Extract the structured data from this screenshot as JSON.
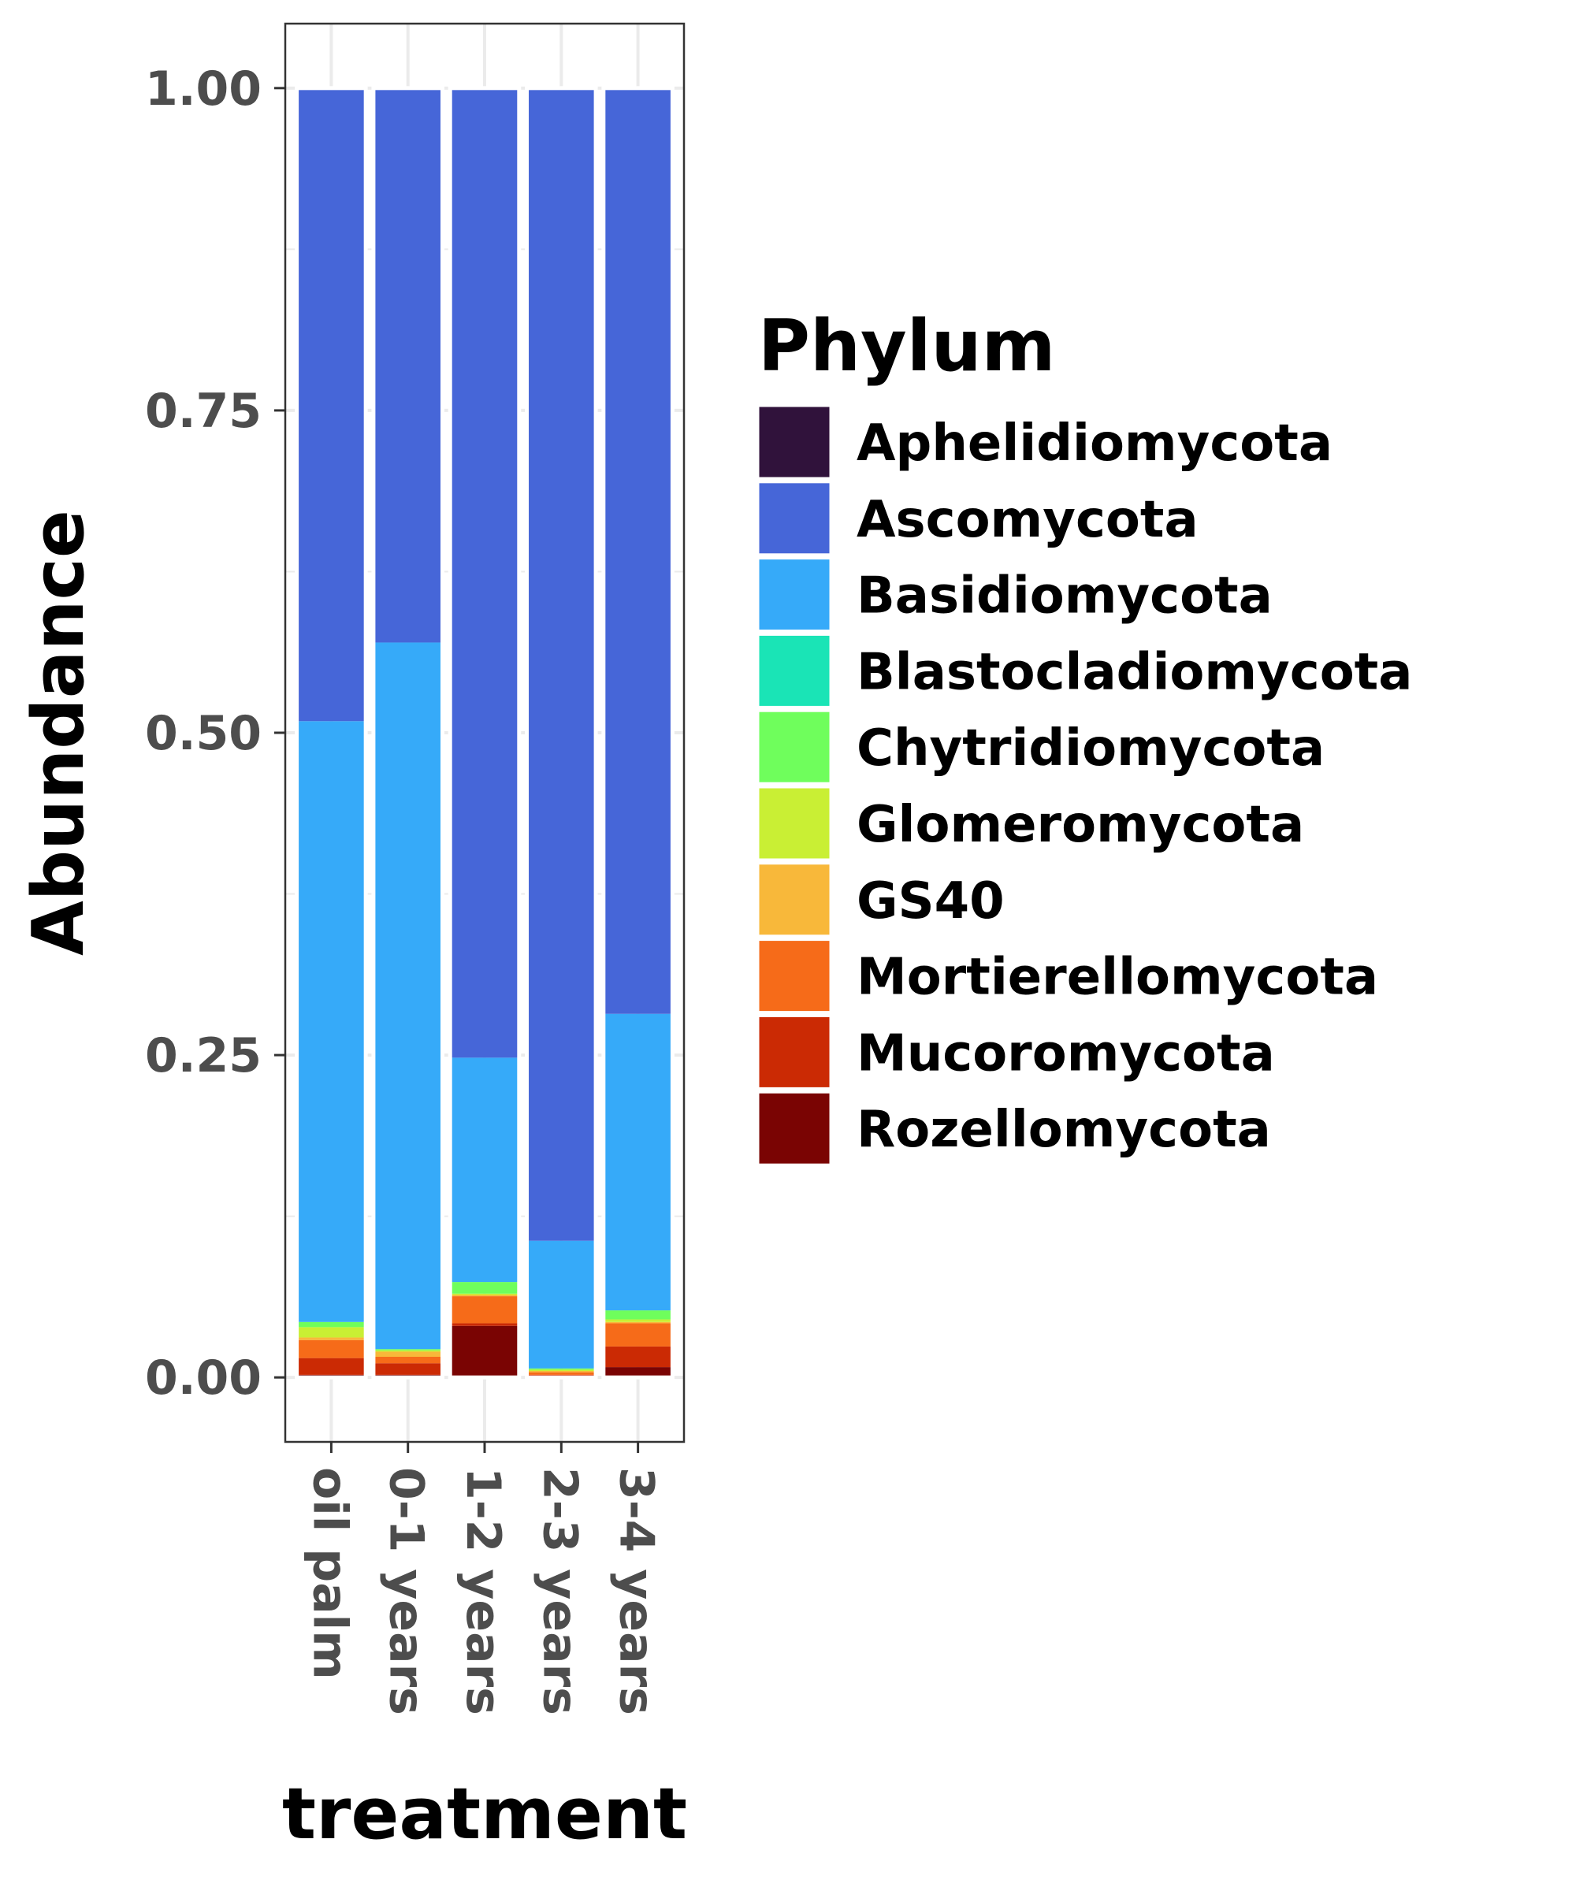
{
  "chart_data": {
    "type": "bar",
    "stacked": true,
    "xlabel": "treatment",
    "ylabel": "Abundance",
    "ylim": [
      -0.05,
      1.05
    ],
    "yticks": [
      "0.00",
      "0.25",
      "0.50",
      "0.75",
      "1.00"
    ],
    "grid": true,
    "legend_position": "right",
    "legend_title": "Phylum",
    "categories": [
      "oil palm",
      "0-1 years",
      "1-2 years",
      "2-3 years",
      "3-4 years"
    ],
    "series": [
      {
        "name": "Rozellomycota",
        "color": "#7a0403",
        "values": [
          0.002,
          0.002,
          0.04,
          0.001,
          0.008
        ]
      },
      {
        "name": "Mucoromycota",
        "color": "#cb2a04",
        "values": [
          0.013,
          0.009,
          0.002,
          0.001,
          0.016
        ]
      },
      {
        "name": "Mortierellomycota",
        "color": "#f66b19",
        "values": [
          0.014,
          0.005,
          0.021,
          0.002,
          0.018
        ]
      },
      {
        "name": "GS40",
        "color": "#f8b83a",
        "values": [
          0.002,
          0.004,
          0.001,
          0.001,
          0.001
        ]
      },
      {
        "name": "Glomeromycota",
        "color": "#c9ef34",
        "values": [
          0.008,
          0.001,
          0.001,
          0.001,
          0.002
        ]
      },
      {
        "name": "Chytridiomycota",
        "color": "#6ffe5c",
        "values": [
          0.004,
          0.001,
          0.009,
          0.001,
          0.007
        ]
      },
      {
        "name": "Blastocladiomycota",
        "color": "#1ae4b6",
        "values": [
          0.0,
          0.0,
          0.0,
          0.0,
          0.0
        ]
      },
      {
        "name": "Basidiomycota",
        "color": "#36aaf9",
        "values": [
          0.466,
          0.548,
          0.174,
          0.099,
          0.23
        ]
      },
      {
        "name": "Ascomycota",
        "color": "#4666d8",
        "values": [
          0.491,
          0.43,
          0.752,
          0.894,
          0.718
        ]
      },
      {
        "name": "Aphelidiomycota",
        "color": "#30123b",
        "values": [
          0.0,
          0.0,
          0.0,
          0.0,
          0.0
        ]
      }
    ],
    "legend_order": [
      "Aphelidiomycota",
      "Ascomycota",
      "Basidiomycota",
      "Blastocladiomycota",
      "Chytridiomycota",
      "Glomeromycota",
      "GS40",
      "Mortierellomycota",
      "Mucoromycota",
      "Rozellomycota"
    ]
  }
}
